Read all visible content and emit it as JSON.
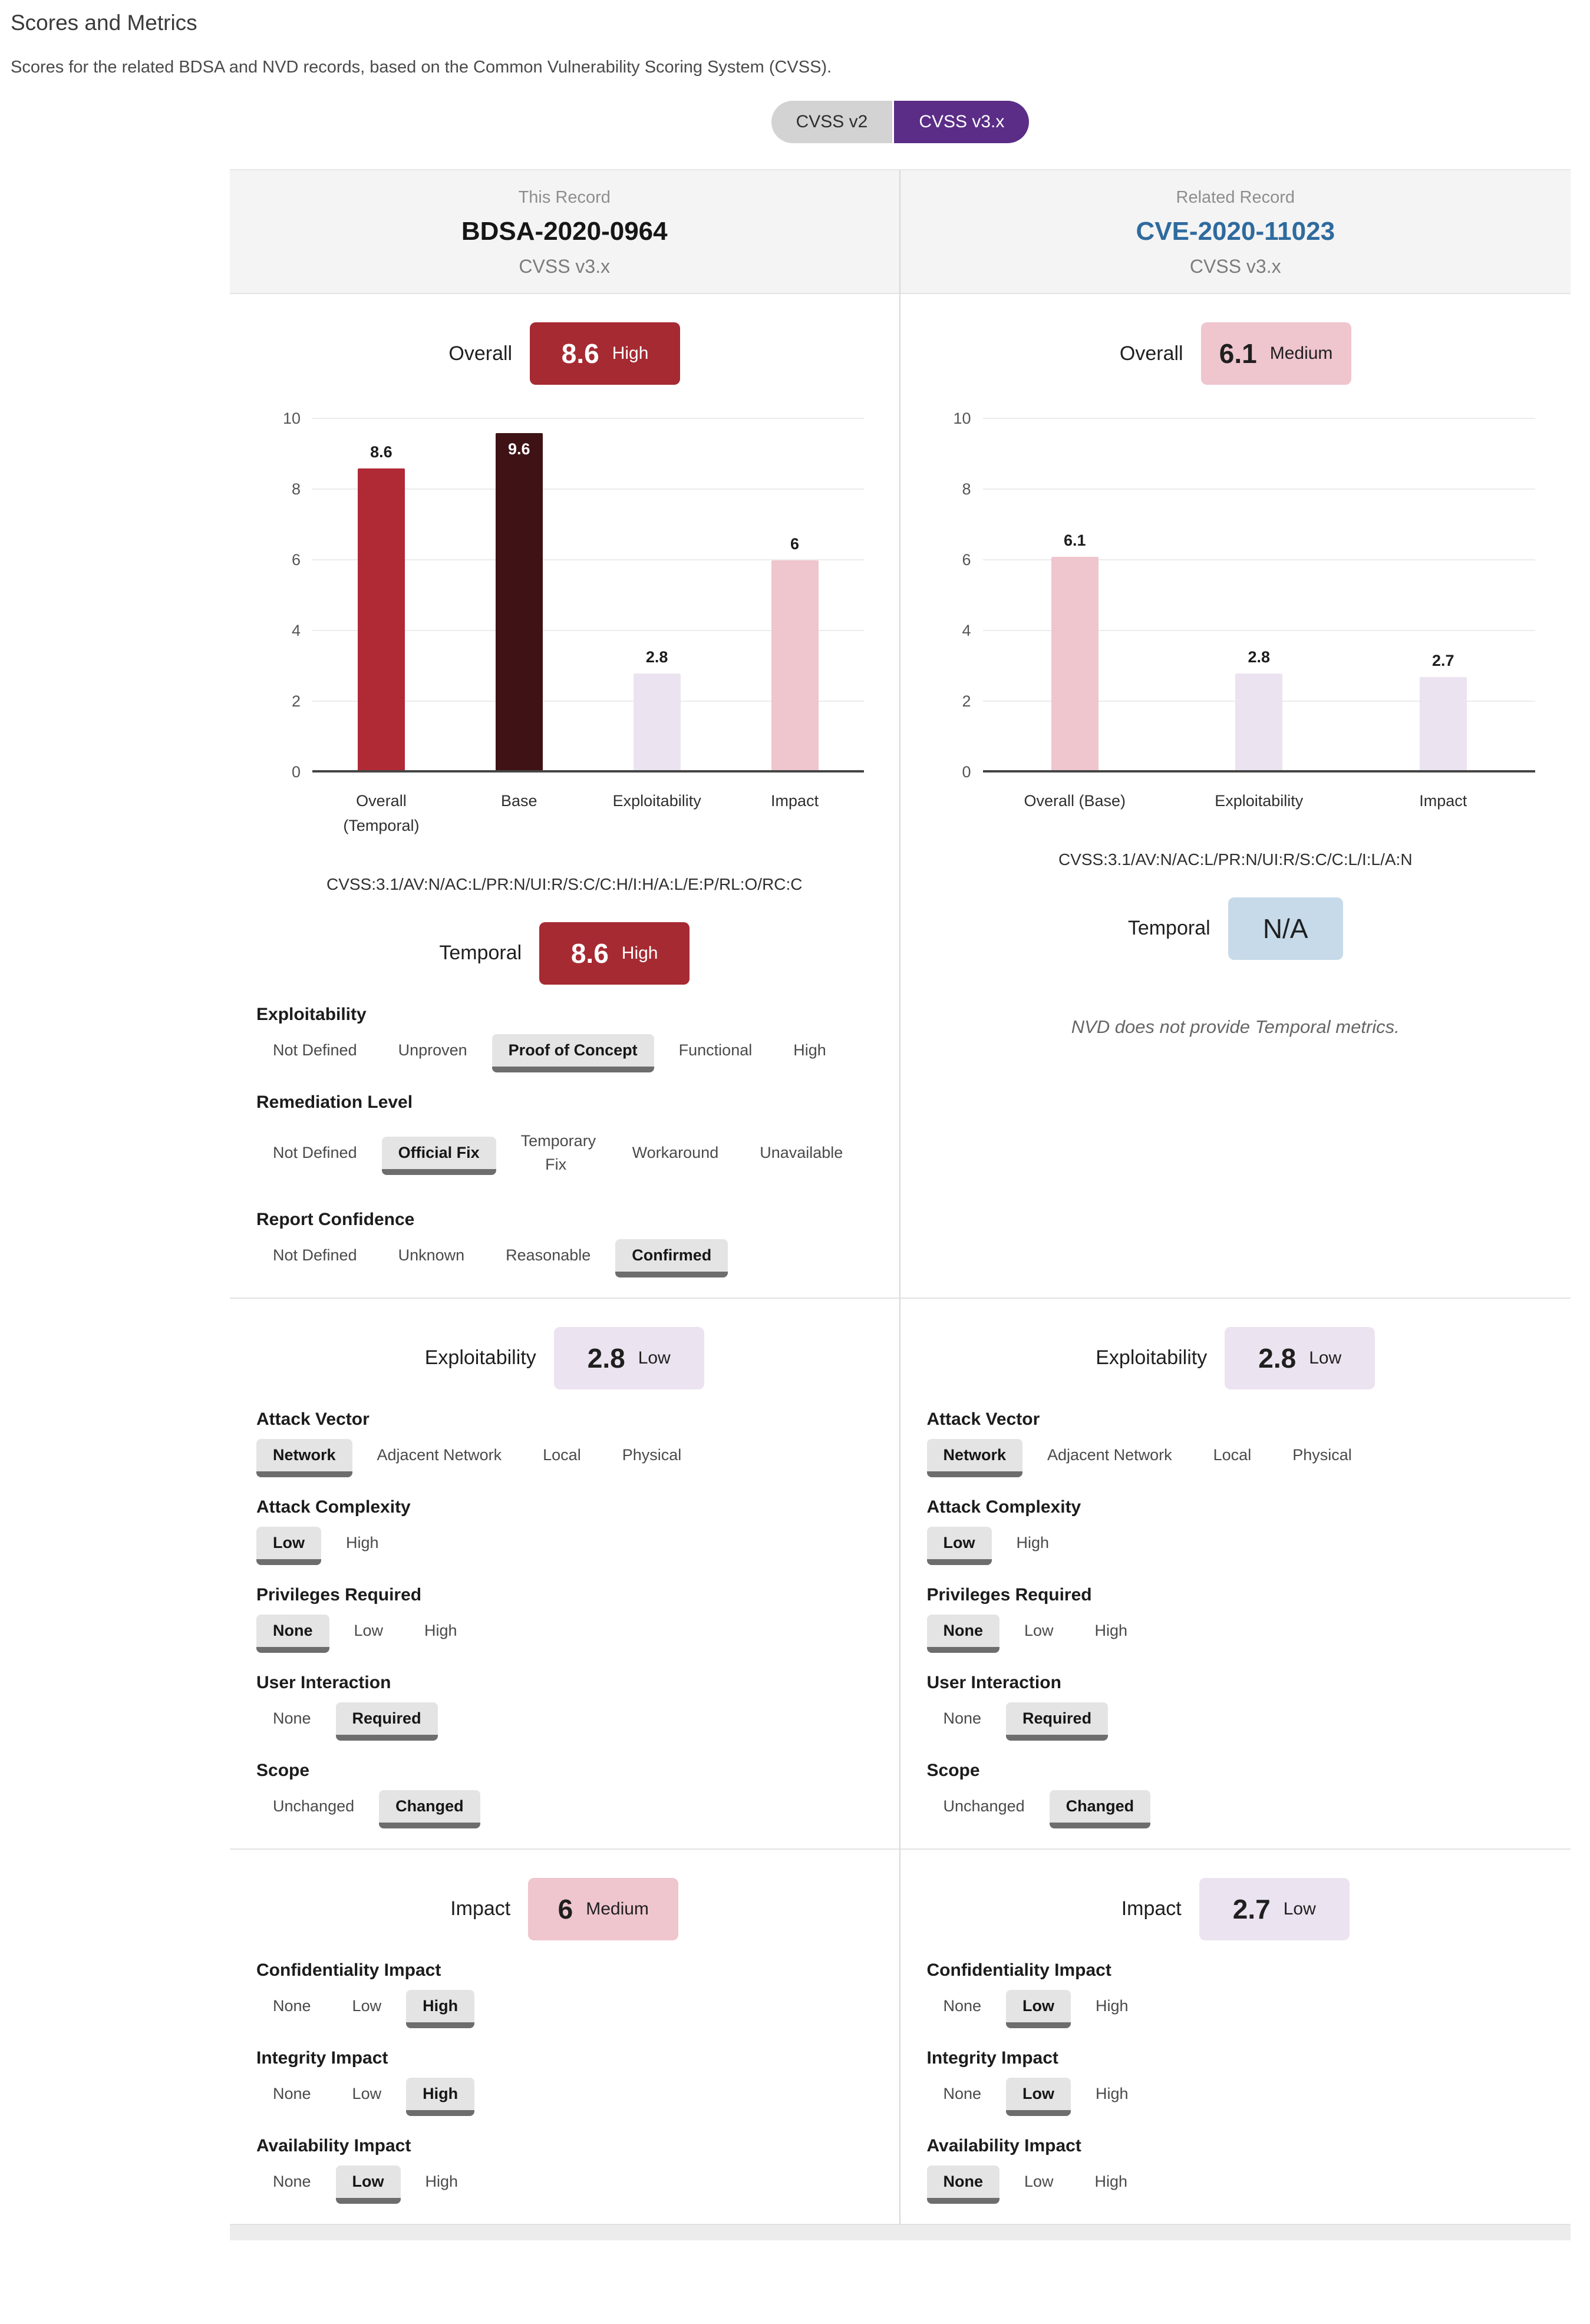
{
  "page": {
    "title": "Scores and Metrics",
    "subtitle": "Scores for the related BDSA and NVD records, based on the Common Vulnerability Scoring System (CVSS)."
  },
  "toggle": {
    "options": [
      {
        "label": "CVSS v2",
        "selected": false
      },
      {
        "label": "CVSS v3.x",
        "selected": true
      }
    ]
  },
  "colors": {
    "purple": "#5b2d87",
    "link": "#2e6a9e",
    "high": "#a62a32",
    "bar_high": "#b02a36",
    "base": "#3f1215",
    "medium": "#efc5ce",
    "low": "#ece3f0",
    "na": "#c6dae9",
    "sel_bg": "#e4e4e4",
    "sel_border": "#6d6d6d"
  },
  "chart_data": [
    {
      "type": "bar",
      "title": "BDSA-2020-0964 CVSS v3.x scores",
      "categories": [
        "Overall (Temporal)",
        "Base",
        "Exploitability",
        "Impact"
      ],
      "values": [
        8.6,
        9.6,
        2.8,
        6
      ],
      "labels": [
        "8.6",
        "9.6",
        "2.8",
        "6"
      ],
      "colors": [
        "bar_high",
        "base",
        "low",
        "medium"
      ],
      "label_inside": [
        false,
        true,
        false,
        false
      ],
      "ylim": [
        0,
        10
      ],
      "yticks": [
        0,
        2,
        4,
        6,
        8,
        10
      ],
      "grid": true,
      "xlabel": "",
      "ylabel": ""
    },
    {
      "type": "bar",
      "title": "CVE-2020-11023 CVSS v3.x scores",
      "categories": [
        "Overall (Base)",
        "Exploitability",
        "Impact"
      ],
      "values": [
        6.1,
        2.8,
        2.7
      ],
      "labels": [
        "6.1",
        "2.8",
        "2.7"
      ],
      "colors": [
        "medium",
        "low",
        "low"
      ],
      "label_inside": [
        false,
        false,
        false
      ],
      "ylim": [
        0,
        10
      ],
      "yticks": [
        0,
        2,
        4,
        6,
        8,
        10
      ],
      "grid": true,
      "xlabel": "",
      "ylabel": ""
    }
  ],
  "columns": [
    {
      "header": {
        "kicker": "This Record",
        "record_id": "BDSA-2020-0964",
        "version": "CVSS v3.x"
      },
      "overall": {
        "label": "Overall",
        "score": "8.6",
        "severity": "High",
        "style": "high"
      },
      "vector": "CVSS:3.1/AV:N/AC:L/PR:N/UI:R/S:C/C:H/I:H/A:L/E:P/RL:O/RC:C",
      "temporal": {
        "label": "Temporal",
        "score": "8.6",
        "severity": "High",
        "style": "high"
      },
      "temporal_note": "",
      "temporal_groups": [
        {
          "title": "Exploitability",
          "options": [
            {
              "label": "Not Defined"
            },
            {
              "label": "Unproven"
            },
            {
              "label": "Proof of Concept",
              "selected": true
            },
            {
              "label": "Functional"
            },
            {
              "label": "High"
            }
          ]
        },
        {
          "title": "Remediation Level",
          "options": [
            {
              "label": "Not Defined"
            },
            {
              "label": "Official Fix",
              "selected": true
            },
            {
              "label": "Temporary Fix",
              "wrap": true
            },
            {
              "label": "Workaround"
            },
            {
              "label": "Unavailable"
            }
          ]
        },
        {
          "title": "Report Confidence",
          "options": [
            {
              "label": "Not Defined"
            },
            {
              "label": "Unknown"
            },
            {
              "label": "Reasonable"
            },
            {
              "label": "Confirmed",
              "selected": true
            }
          ]
        }
      ],
      "exploitability": {
        "label": "Exploitability",
        "score": "2.8",
        "severity": "Low",
        "style": "low"
      },
      "exploitability_groups": [
        {
          "title": "Attack Vector",
          "options": [
            {
              "label": "Network",
              "selected": true
            },
            {
              "label": "Adjacent Network"
            },
            {
              "label": "Local"
            },
            {
              "label": "Physical"
            }
          ]
        },
        {
          "title": "Attack Complexity",
          "options": [
            {
              "label": "Low",
              "selected": true
            },
            {
              "label": "High"
            }
          ]
        },
        {
          "title": "Privileges Required",
          "options": [
            {
              "label": "None",
              "selected": true
            },
            {
              "label": "Low"
            },
            {
              "label": "High"
            }
          ]
        },
        {
          "title": "User Interaction",
          "options": [
            {
              "label": "None"
            },
            {
              "label": "Required",
              "selected": true
            }
          ]
        },
        {
          "title": "Scope",
          "options": [
            {
              "label": "Unchanged"
            },
            {
              "label": "Changed",
              "selected": true
            }
          ]
        }
      ],
      "impact": {
        "label": "Impact",
        "score": "6",
        "severity": "Medium",
        "style": "medium"
      },
      "impact_groups": [
        {
          "title": "Confidentiality Impact",
          "options": [
            {
              "label": "None"
            },
            {
              "label": "Low"
            },
            {
              "label": "High",
              "selected": true
            }
          ]
        },
        {
          "title": "Integrity Impact",
          "options": [
            {
              "label": "None"
            },
            {
              "label": "Low"
            },
            {
              "label": "High",
              "selected": true
            }
          ]
        },
        {
          "title": "Availability Impact",
          "options": [
            {
              "label": "None"
            },
            {
              "label": "Low",
              "selected": true
            },
            {
              "label": "High"
            }
          ]
        }
      ]
    },
    {
      "header": {
        "kicker": "Related Record",
        "record_id": "CVE-2020-11023",
        "version": "CVSS v3.x"
      },
      "overall": {
        "label": "Overall",
        "score": "6.1",
        "severity": "Medium",
        "style": "medium"
      },
      "vector": "CVSS:3.1/AV:N/AC:L/PR:N/UI:R/S:C/C:L/I:L/A:N",
      "temporal": {
        "label": "Temporal",
        "score": "N/A",
        "severity": "",
        "style": "na"
      },
      "temporal_note": "NVD does not provide Temporal metrics.",
      "exploitability": {
        "label": "Exploitability",
        "score": "2.8",
        "severity": "Low",
        "style": "low"
      },
      "exploitability_groups": [
        {
          "title": "Attack Vector",
          "options": [
            {
              "label": "Network",
              "selected": true
            },
            {
              "label": "Adjacent Network"
            },
            {
              "label": "Local"
            },
            {
              "label": "Physical"
            }
          ]
        },
        {
          "title": "Attack Complexity",
          "options": [
            {
              "label": "Low",
              "selected": true
            },
            {
              "label": "High"
            }
          ]
        },
        {
          "title": "Privileges Required",
          "options": [
            {
              "label": "None",
              "selected": true
            },
            {
              "label": "Low"
            },
            {
              "label": "High"
            }
          ]
        },
        {
          "title": "User Interaction",
          "options": [
            {
              "label": "None"
            },
            {
              "label": "Required",
              "selected": true
            }
          ]
        },
        {
          "title": "Scope",
          "options": [
            {
              "label": "Unchanged"
            },
            {
              "label": "Changed",
              "selected": true
            }
          ]
        }
      ],
      "impact": {
        "label": "Impact",
        "score": "2.7",
        "severity": "Low",
        "style": "low"
      },
      "impact_groups": [
        {
          "title": "Confidentiality Impact",
          "options": [
            {
              "label": "None"
            },
            {
              "label": "Low",
              "selected": true
            },
            {
              "label": "High"
            }
          ]
        },
        {
          "title": "Integrity Impact",
          "options": [
            {
              "label": "None"
            },
            {
              "label": "Low",
              "selected": true
            },
            {
              "label": "High"
            }
          ]
        },
        {
          "title": "Availability Impact",
          "options": [
            {
              "label": "None",
              "selected": true
            },
            {
              "label": "Low"
            },
            {
              "label": "High"
            }
          ]
        }
      ]
    }
  ]
}
